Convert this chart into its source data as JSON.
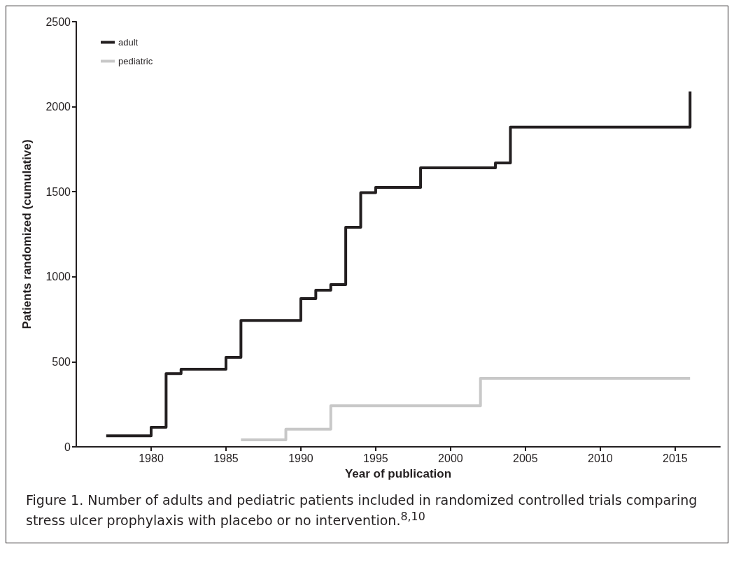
{
  "chart_data": {
    "type": "step",
    "xlabel": "Year of publication",
    "ylabel": "Patients randomized (cumulative)",
    "xlim": [
      1975,
      2018
    ],
    "xticks": [
      1980,
      1985,
      1990,
      1995,
      2000,
      2005,
      2010,
      2015
    ],
    "ylim": [
      0,
      2500
    ],
    "yticks": [
      0,
      500,
      1000,
      1500,
      2000,
      2500
    ],
    "series": [
      {
        "name": "adult",
        "color": "#231f20",
        "x": [
          1977,
          1980,
          1981,
          1982,
          1985,
          1986,
          1990,
          1991,
          1992,
          1993,
          1994,
          1995,
          1998,
          2003,
          2004,
          2016
        ],
        "values": [
          65,
          115,
          431,
          456,
          526,
          743,
          872,
          921,
          954,
          1291,
          1495,
          1526,
          1641,
          1669,
          1880,
          2090
        ]
      },
      {
        "name": "pediatric",
        "color": "#c8c8c8",
        "x": [
          1986,
          1989,
          1992,
          2002,
          2016
        ],
        "values": [
          41,
          104,
          242,
          403,
          403
        ]
      }
    ],
    "grid": false,
    "legend": "top left",
    "marker": "none",
    "line_style": "solid",
    "annotations": [
      "Figure 1. Number of adults and pediatric patients included in randomized controlled trials comparing stress ulcer prophylaxis with placebo or no intervention.$^{8,10}$"
    ]
  }
}
